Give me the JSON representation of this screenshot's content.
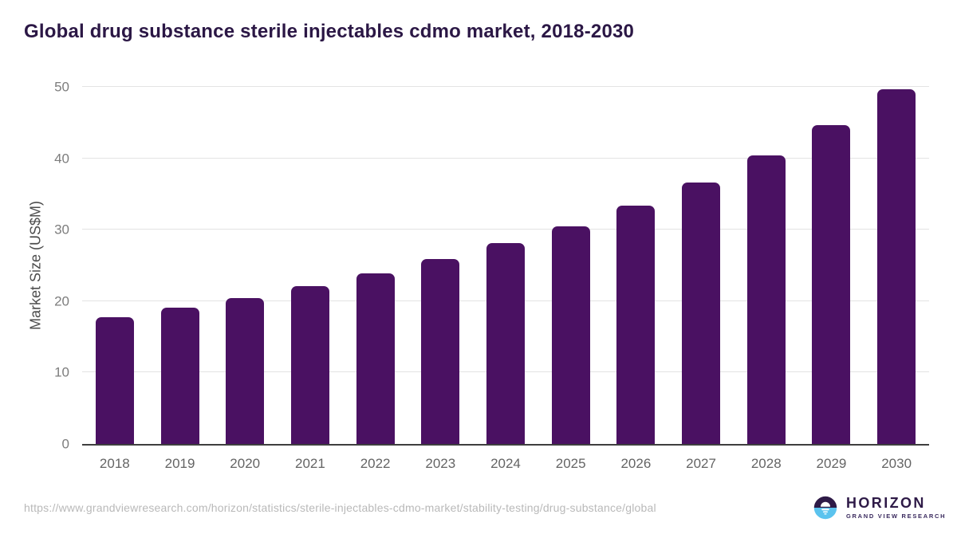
{
  "title": "Global drug substance sterile injectables cdmo market, 2018-2030",
  "source_url": "https://www.grandviewresearch.com/horizon/statistics/sterile-injectables-cdmo-market/stability-testing/drug-substance/global",
  "logo": {
    "name": "HORIZON",
    "subtitle": "GRAND VIEW RESEARCH"
  },
  "colors": {
    "bar": "#4a1162",
    "title_text": "#2b1745",
    "gridline": "#e3e3e3",
    "axis_line": "#3f3f3f",
    "tick_text": "#7d7d7d",
    "url_text": "#b9b9b9",
    "logo_dark": "#2e1a47",
    "logo_blue": "#5bc3ee"
  },
  "chart_data": {
    "type": "bar",
    "title": "Global drug substance sterile injectables cdmo market, 2018-2030",
    "categories": [
      "2018",
      "2019",
      "2020",
      "2021",
      "2022",
      "2023",
      "2024",
      "2025",
      "2026",
      "2027",
      "2028",
      "2029",
      "2030"
    ],
    "values": [
      17.8,
      19.1,
      20.4,
      22.1,
      23.9,
      25.9,
      28.1,
      30.5,
      33.4,
      36.6,
      40.4,
      44.7,
      49.7
    ],
    "xlabel": "",
    "ylabel": "Market Size (US$M)",
    "ylim": [
      0,
      50
    ],
    "yticks": [
      0,
      10,
      20,
      30,
      40,
      50
    ],
    "grid": true,
    "legend": false,
    "bar_color": "#4a1162"
  }
}
